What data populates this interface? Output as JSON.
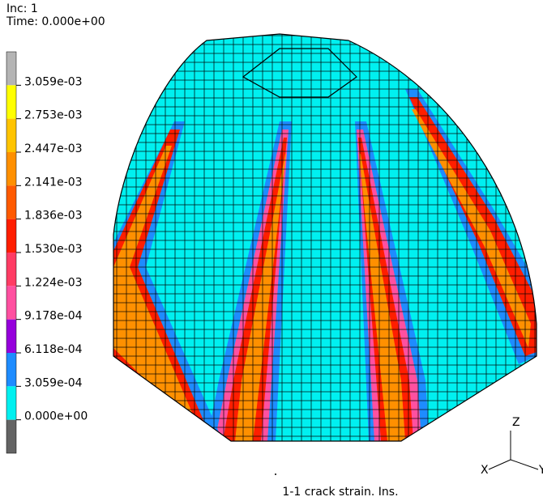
{
  "header": {
    "increment": "Inc:  1",
    "time": "Time:  0.000e+00"
  },
  "legend": {
    "labels": [
      "3.059e-03",
      "2.753e-03",
      "2.447e-03",
      "2.141e-03",
      "1.836e-03",
      "1.530e-03",
      "1.224e-03",
      "9.178e-04",
      "6.118e-04",
      "3.059e-04",
      "0.000e+00"
    ],
    "colors": [
      "#b4b4b4",
      "#ffff00",
      "#ffc400",
      "#ff9000",
      "#ff5a00",
      "#ff1e00",
      "#ff3c64",
      "#ff50a0",
      "#9600dc",
      "#1e8cff",
      "#00f0f0",
      "#646464"
    ]
  },
  "caption": "1-1 crack strain. Ins.",
  "axes": {
    "z": "Z",
    "x": "X",
    "y": "Y"
  }
}
